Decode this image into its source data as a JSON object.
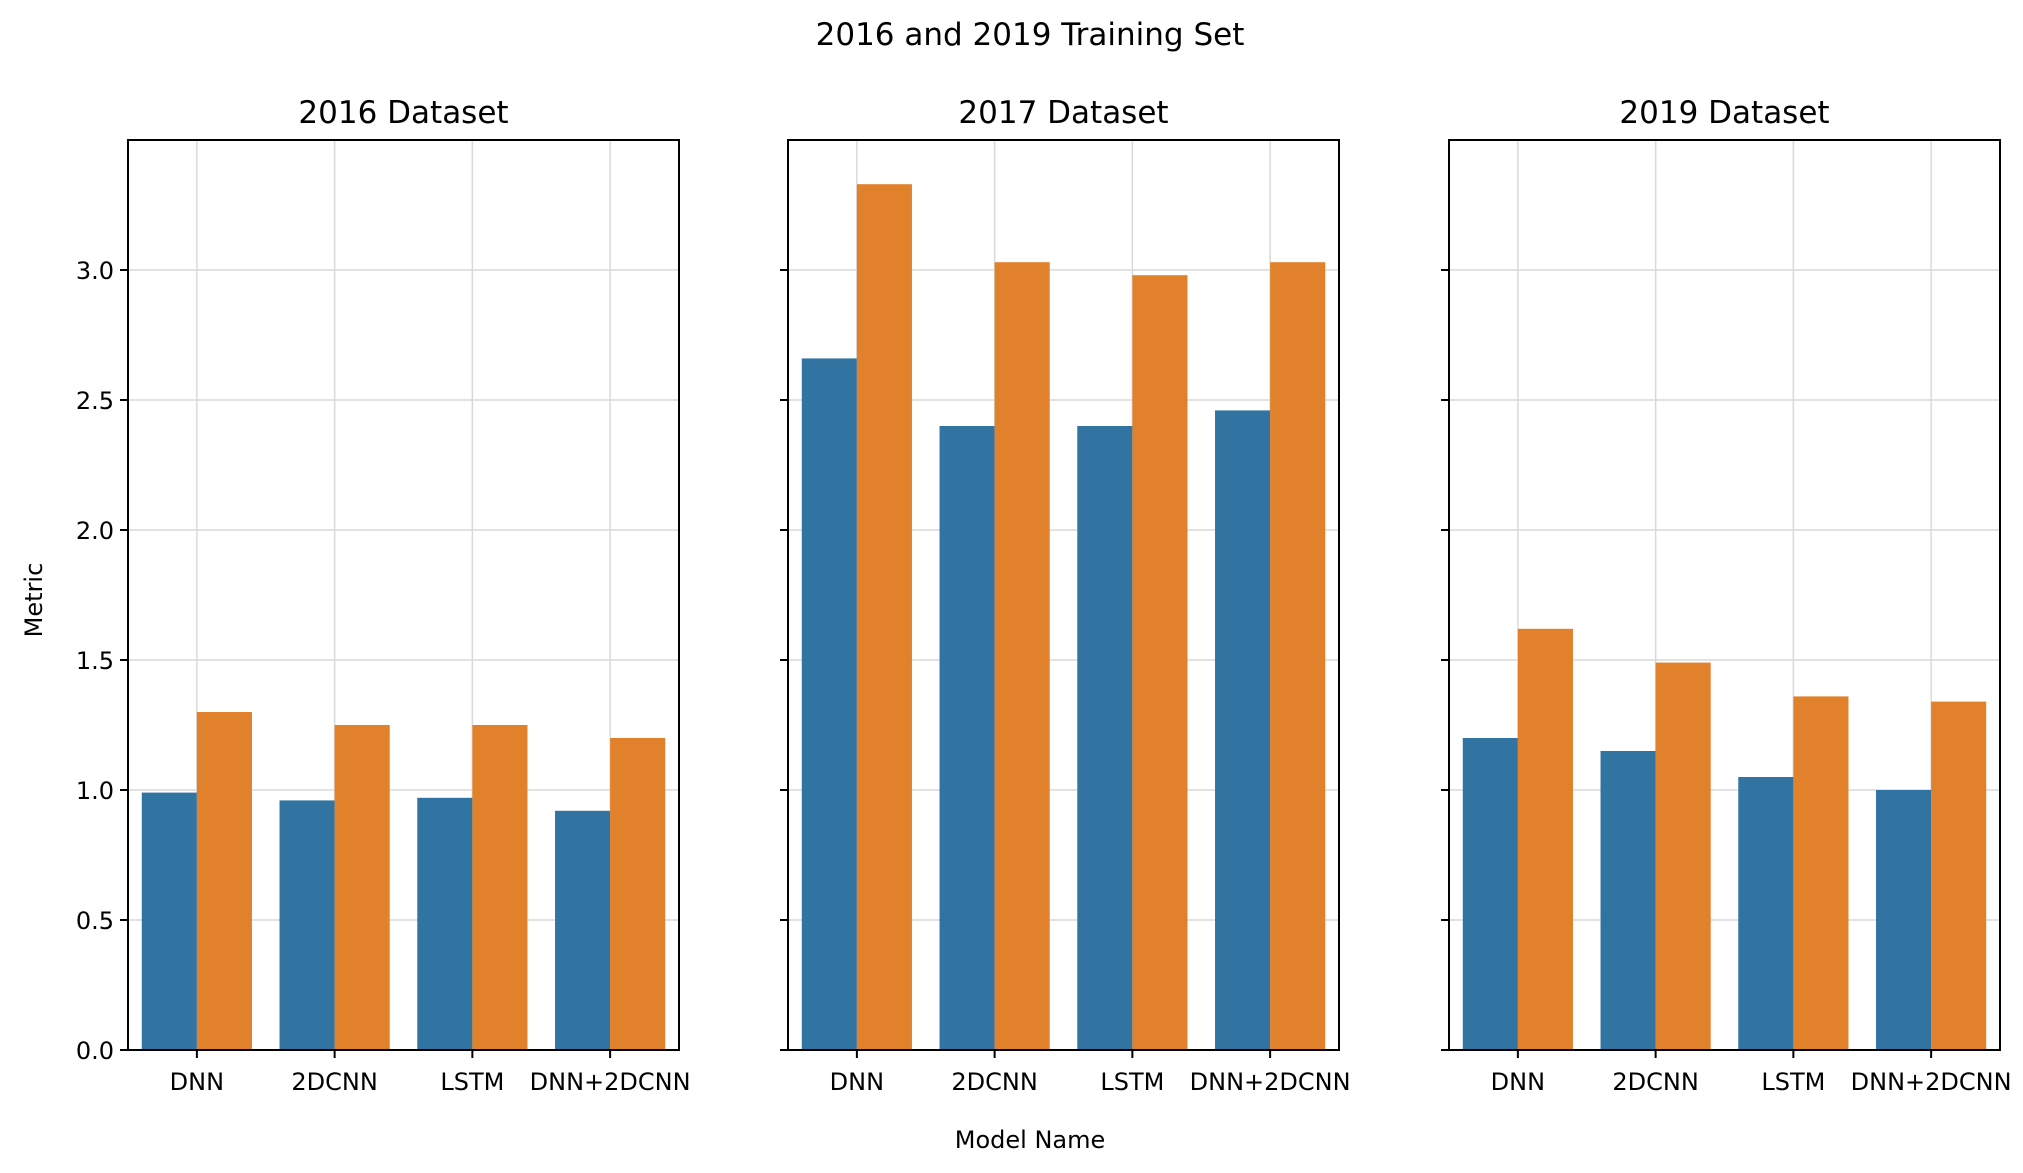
{
  "figure": {
    "suptitle": "2016 and 2019 Training Set",
    "xlabel": "Model Name",
    "ylabel": "Metric"
  },
  "colors": {
    "series_1": "#3274a1",
    "series_2": "#e1812c"
  },
  "chart_data": [
    {
      "type": "bar",
      "title": "2016 Dataset",
      "categories": [
        "DNN",
        "2DCNN",
        "LSTM",
        "DNN+2DCNN"
      ],
      "series": [
        {
          "values": [
            0.99,
            0.96,
            0.97,
            0.92
          ]
        },
        {
          "values": [
            1.3,
            1.25,
            1.25,
            1.2
          ]
        }
      ],
      "ylim": [
        0,
        3.5
      ],
      "yticks": [
        "0.0",
        "0.5",
        "1.0",
        "1.5",
        "2.0",
        "2.5",
        "3.0"
      ],
      "grid": true,
      "xlabel": "",
      "ylabel": "Metric"
    },
    {
      "type": "bar",
      "title": "2017 Dataset",
      "categories": [
        "DNN",
        "2DCNN",
        "LSTM",
        "DNN+2DCNN"
      ],
      "series": [
        {
          "values": [
            2.66,
            2.4,
            2.4,
            2.46
          ]
        },
        {
          "values": [
            3.33,
            3.03,
            2.98,
            3.03
          ]
        }
      ],
      "ylim": [
        0,
        3.5
      ],
      "grid": true,
      "xlabel": "Model Name",
      "ylabel": ""
    },
    {
      "type": "bar",
      "title": "2019 Dataset",
      "categories": [
        "DNN",
        "2DCNN",
        "LSTM",
        "DNN+2DCNN"
      ],
      "series": [
        {
          "values": [
            1.2,
            1.15,
            1.05,
            1.0
          ]
        },
        {
          "values": [
            1.62,
            1.49,
            1.36,
            1.34
          ]
        }
      ],
      "ylim": [
        0,
        3.5
      ],
      "grid": true,
      "xlabel": "",
      "ylabel": ""
    }
  ]
}
